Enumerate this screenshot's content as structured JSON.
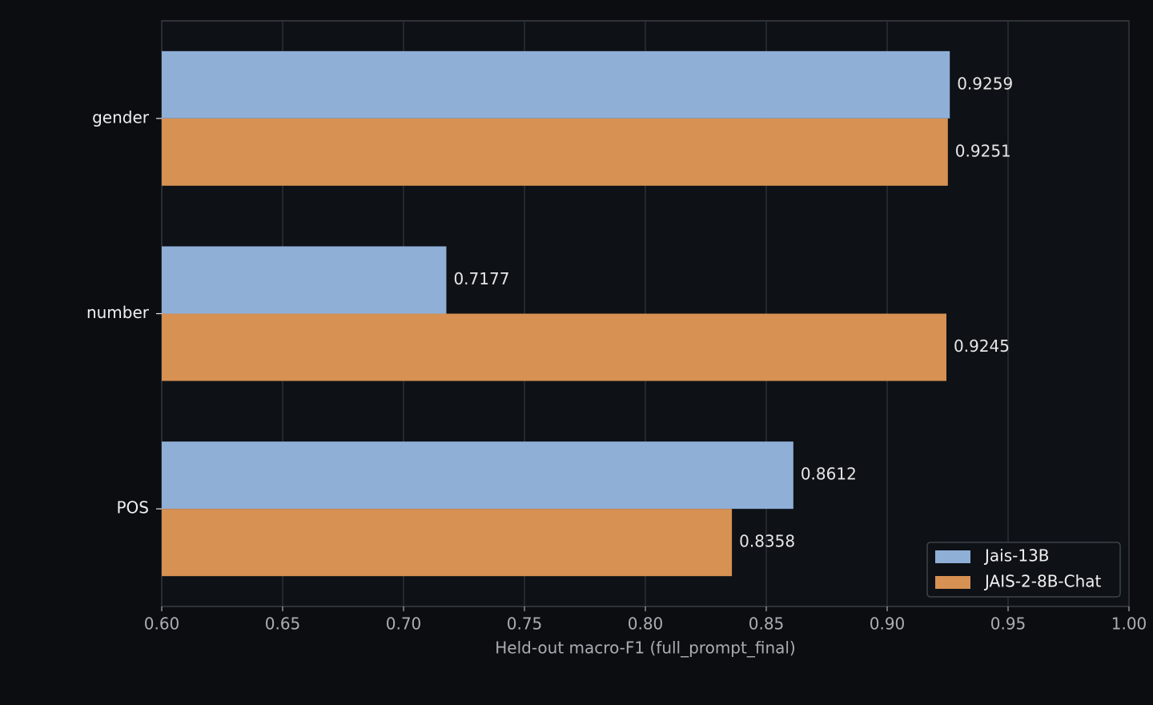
{
  "chart_data": {
    "type": "barh",
    "xlabel": "Held-out macro-F1 (full_prompt_final)",
    "categories": [
      "gender",
      "number",
      "POS"
    ],
    "series": [
      {
        "name": "Jais-13B",
        "color": "#8fafd7",
        "values": [
          0.9259,
          0.7177,
          0.8612
        ]
      },
      {
        "name": "JAIS-2-8B-Chat",
        "color": "#d69153",
        "values": [
          0.9251,
          0.9245,
          0.8358
        ]
      }
    ],
    "xlim": [
      0.6,
      1.0
    ],
    "xticks": [
      {
        "value": 0.6,
        "label": "0.60"
      },
      {
        "value": 0.65,
        "label": "0.65"
      },
      {
        "value": 0.7,
        "label": "0.70"
      },
      {
        "value": 0.75,
        "label": "0.75"
      },
      {
        "value": 0.8,
        "label": "0.80"
      },
      {
        "value": 0.85,
        "label": "0.85"
      },
      {
        "value": 0.9,
        "label": "0.90"
      },
      {
        "value": 0.95,
        "label": "0.95"
      },
      {
        "value": 1.0,
        "label": "1.00"
      }
    ],
    "grid": true,
    "legend": "lower right"
  }
}
